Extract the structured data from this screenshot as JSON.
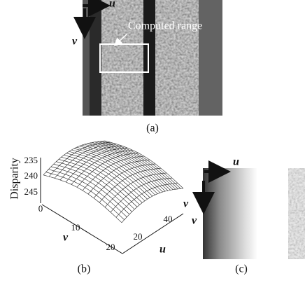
{
  "panels": [
    {
      "label": "(a)",
      "u_label": "u",
      "v_label": "v",
      "annotation": "Computed range"
    },
    {
      "label": "(b)",
      "z_axis_label": "Disparity",
      "z_ticks": [
        "235",
        "240",
        "245"
      ],
      "v_ticks": [
        "0",
        "10",
        "20"
      ],
      "v_axis_label": "v",
      "u_ticks": [
        "20",
        "40"
      ],
      "u_axis_label": "u",
      "v_axis_label_right": "v"
    },
    {
      "label": "(c)",
      "u_label": "u",
      "v_label": "v"
    }
  ]
}
